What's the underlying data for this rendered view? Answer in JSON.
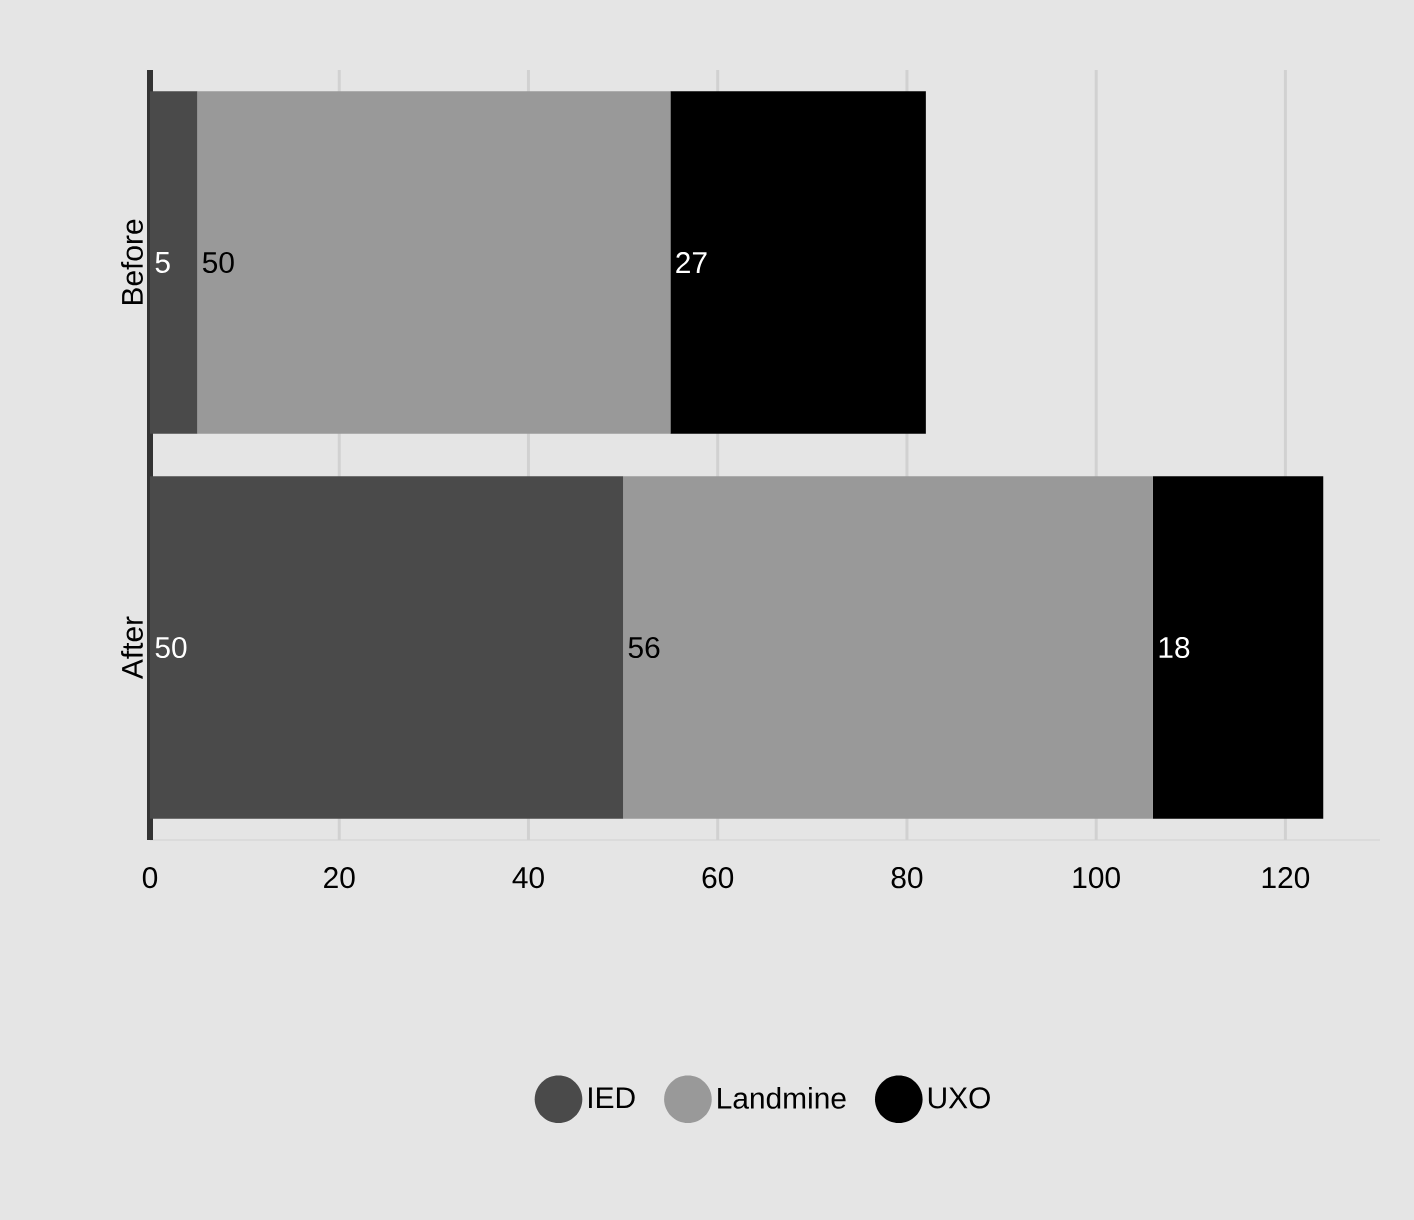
{
  "chart_data": {
    "type": "bar",
    "orientation": "horizontal",
    "stacked": true,
    "categories": [
      "Before",
      "After"
    ],
    "series": [
      {
        "name": "IED",
        "color": "#4a4a4a",
        "values": [
          5,
          50
        ]
      },
      {
        "name": "Landmine",
        "color": "#999999",
        "values": [
          50,
          56
        ]
      },
      {
        "name": "UXO",
        "color": "#000000",
        "values": [
          27,
          18
        ]
      }
    ],
    "xlim": [
      0,
      130
    ],
    "xticks": [
      0,
      20,
      40,
      60,
      80,
      100,
      120
    ],
    "grid": "x",
    "legend": "bottom",
    "data_labels": true
  }
}
